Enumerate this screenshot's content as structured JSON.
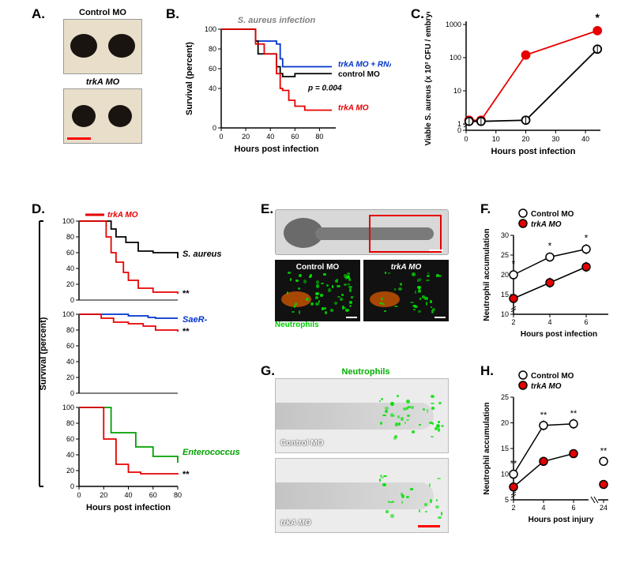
{
  "panelA": {
    "label": "A.",
    "topLabel": "Control MO",
    "bottomLabel": "trkA MO",
    "imageBg": "#e6dcc5",
    "eyeColor": "#1a1410",
    "scaleBarColor": "#ff0000"
  },
  "panelB": {
    "label": "B.",
    "title": "S. aureus infection",
    "title_color": "#808080",
    "xlabel": "Hours post infection",
    "ylabel": "Survival (percent)",
    "xlim": [
      0,
      90
    ],
    "xticks": [
      0,
      20,
      40,
      60,
      80
    ],
    "ylim": [
      0,
      100
    ],
    "yticks": [
      0,
      40,
      60,
      80,
      100
    ],
    "series": [
      {
        "name": "trkA MO + RNA",
        "color": "#0033cc",
        "x": [
          0,
          24,
          28,
          45,
          48,
          50,
          60,
          68,
          90
        ],
        "y": [
          100,
          100,
          88,
          85,
          70,
          62,
          62,
          62,
          62
        ]
      },
      {
        "name": "control MO",
        "color": "#000000",
        "x": [
          0,
          24,
          28,
          30,
          45,
          48,
          50,
          60,
          68,
          90
        ],
        "y": [
          100,
          100,
          88,
          75,
          62,
          55,
          52,
          55,
          55,
          55
        ]
      },
      {
        "name": "trkA MO",
        "color": "#e60000",
        "x": [
          0,
          24,
          28,
          35,
          45,
          48,
          50,
          55,
          60,
          68,
          90
        ],
        "y": [
          100,
          100,
          85,
          75,
          55,
          40,
          38,
          28,
          22,
          18,
          18
        ]
      }
    ],
    "pvalue": "p = 0.004",
    "label_fontsize": 11
  },
  "panelC": {
    "label": "C.",
    "xlabel": "Hours post infection",
    "ylabel": "Viable S. aureus (x 10³ CFU / embryo)",
    "xlim": [
      0,
      45
    ],
    "xticks": [
      0,
      10,
      20,
      30,
      40
    ],
    "ylog": true,
    "yticks": [
      0,
      1,
      10,
      100,
      1000
    ],
    "series": [
      {
        "color": "#e60000",
        "fill": "#e60000",
        "x": [
          1,
          5,
          20,
          44
        ],
        "y": [
          1.3,
          1.3,
          120,
          650
        ]
      },
      {
        "color": "#000000",
        "fill": "#ffffff",
        "x": [
          1,
          5,
          20,
          44
        ],
        "y": [
          1.2,
          1.2,
          1.3,
          180
        ]
      }
    ],
    "star": "*"
  },
  "panelD": {
    "label": "D.",
    "xlabel": "Hours post infection",
    "ylabel": "Survival (percent)",
    "yticks": [
      0,
      20,
      40,
      60,
      80,
      100
    ],
    "legend_trka": "trkA MO",
    "legend_trka_color": "#e60000",
    "subpanels": [
      {
        "name": "S. aureus",
        "color": "#000000",
        "textcolor": "#000000",
        "ctrl": {
          "x": [
            0,
            18,
            26,
            30,
            38,
            48,
            60,
            80
          ],
          "y": [
            100,
            100,
            90,
            80,
            73,
            62,
            60,
            53
          ]
        },
        "trka": {
          "x": [
            0,
            18,
            22,
            26,
            30,
            36,
            40,
            48,
            60,
            80
          ],
          "y": [
            100,
            100,
            80,
            60,
            48,
            35,
            25,
            15,
            10,
            8
          ]
        },
        "star": "**"
      },
      {
        "name": "SaeR-",
        "color": "#0033cc",
        "textcolor": "#0033cc",
        "ctrl": {
          "x": [
            0,
            20,
            40,
            56,
            62,
            80
          ],
          "y": [
            100,
            100,
            98,
            96,
            95,
            95
          ]
        },
        "trka": {
          "x": [
            0,
            18,
            28,
            40,
            52,
            62,
            80
          ],
          "y": [
            100,
            95,
            90,
            88,
            85,
            80,
            78
          ]
        },
        "star": "**"
      },
      {
        "name": "Enterococcus",
        "color": "#00a000",
        "textcolor": "#00a000",
        "ctrl": {
          "x": [
            0,
            20,
            26,
            40,
            46,
            60,
            80
          ],
          "y": [
            100,
            100,
            68,
            68,
            50,
            38,
            30
          ]
        },
        "trka": {
          "x": [
            0,
            18,
            20,
            26,
            30,
            40,
            50,
            80
          ],
          "y": [
            100,
            100,
            60,
            60,
            28,
            18,
            16,
            15
          ]
        },
        "star": "**"
      }
    ]
  },
  "panelE": {
    "label": "E.",
    "leftLabel": "Control MO",
    "rightLabel": "trkA MO",
    "neutrophilLabel": "Neutrophils",
    "neutrophilColor": "#00cc00"
  },
  "panelF": {
    "label": "F.",
    "xlabel": "Hours post infection",
    "ylabel": "Neutrophil accumulation",
    "xlim": [
      2,
      7
    ],
    "xticks": [
      2,
      4,
      6
    ],
    "ylim": [
      10,
      30
    ],
    "yticks": [
      10,
      15,
      20,
      25,
      30
    ],
    "series": [
      {
        "label": "Control MO",
        "color": "#000000",
        "fill": "#ffffff",
        "x": [
          2,
          4,
          6
        ],
        "y": [
          20,
          24.5,
          26.5
        ],
        "err": [
          1.5,
          1.2,
          1.3
        ]
      },
      {
        "label": "trkA MO",
        "color": "#000000",
        "fill": "#e60000",
        "x": [
          2,
          4,
          6
        ],
        "y": [
          14,
          18,
          22
        ],
        "err": [
          1.5,
          1.3,
          1.3
        ]
      }
    ],
    "stars": [
      "*",
      "*",
      "*"
    ]
  },
  "panelG": {
    "label": "G.",
    "neutrophilLabel": "Neutrophils",
    "topLabel": "Control MO",
    "bottomLabel": "trkA MO",
    "scaleBarColor": "#ff0000"
  },
  "panelH": {
    "label": "H.",
    "xlabel": "Hours post injury",
    "ylabel": "Neutrophil accumulation",
    "xticks": [
      2,
      4,
      6,
      24
    ],
    "ylim": [
      5,
      25
    ],
    "yticks": [
      5,
      10,
      15,
      20,
      25
    ],
    "series": [
      {
        "label": "Control MO",
        "color": "#000000",
        "fill": "#ffffff",
        "x": [
          2,
          4,
          6
        ],
        "y": [
          10,
          19.5,
          19.8
        ],
        "err": [
          0.8,
          1.0,
          1.0
        ],
        "iso_x": 24,
        "iso_y": 12.5
      },
      {
        "label": "trkA MO",
        "color": "#000000",
        "fill": "#e60000",
        "x": [
          2,
          4,
          6
        ],
        "y": [
          7.5,
          12.5,
          14
        ],
        "err": [
          0.6,
          0.8,
          0.8
        ],
        "iso_x": 24,
        "iso_y": 8
      }
    ],
    "stars": [
      "**",
      "**",
      "**",
      "**"
    ]
  }
}
